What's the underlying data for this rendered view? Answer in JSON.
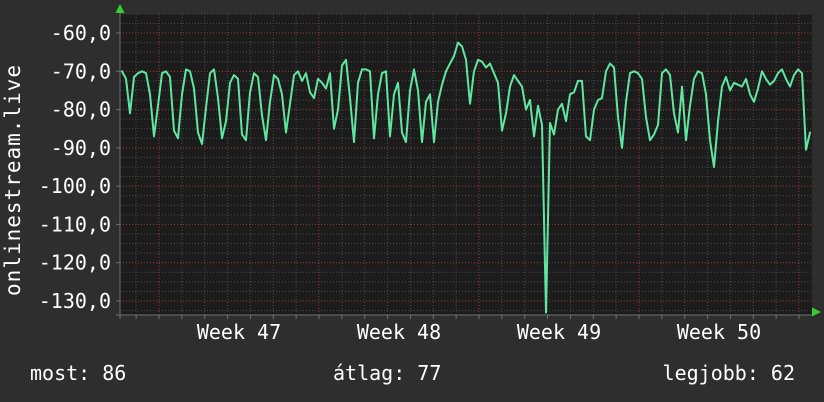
{
  "watermark": {
    "text": "onlinestream.live"
  },
  "footer": {
    "items": [
      {
        "label": "most",
        "value": "86",
        "text": "most: 86"
      },
      {
        "label": "átlag",
        "value": "77",
        "text": "átlag: 77"
      },
      {
        "label": "legjobb",
        "value": "62",
        "text": "legjobb: 62"
      }
    ]
  },
  "chart_data": {
    "type": "line",
    "title": "",
    "xlabel": "",
    "ylabel": "",
    "grid": true,
    "legend_position": "none",
    "colors": {
      "background": "#2e2e2e",
      "plot_background": "#1c1c1c",
      "line": "#5fe6a0",
      "grid_minor": "#4c4c4c",
      "grid_major": "#a03c32",
      "axis": "#707070",
      "arrow": "#2fd22f",
      "text": "#ffffff"
    },
    "y_axis": {
      "tick_labels": [
        "-60,0",
        "-70,0",
        "-80,0",
        "-90,0",
        "-100,0",
        "-110,0",
        "-120,0",
        "-130,0"
      ],
      "tick_values": [
        -60,
        -70,
        -80,
        -90,
        -100,
        -110,
        -120,
        -130
      ],
      "range": [
        -133.5,
        -58
      ],
      "minor_divisions_per_major": 4
    },
    "x_axis": {
      "labels": [
        "Week 47",
        "Week 48",
        "Week 49",
        "Week 50"
      ],
      "days_per_week": 7
    },
    "series": [
      {
        "name": "value",
        "points": [
          [
            122,
            -70
          ],
          [
            126,
            -72
          ],
          [
            130,
            -81
          ],
          [
            134,
            -71.5
          ],
          [
            138,
            -70.5
          ],
          [
            142,
            -70
          ],
          [
            146,
            -70.5
          ],
          [
            150,
            -76
          ],
          [
            154,
            -87
          ],
          [
            158,
            -79
          ],
          [
            162,
            -70.5
          ],
          [
            166,
            -70
          ],
          [
            170,
            -71.5
          ],
          [
            174,
            -85.5
          ],
          [
            178,
            -87.5
          ],
          [
            182,
            -76
          ],
          [
            186,
            -69.5
          ],
          [
            190,
            -70
          ],
          [
            194,
            -74.5
          ],
          [
            198,
            -86
          ],
          [
            202,
            -89
          ],
          [
            206,
            -79.5
          ],
          [
            210,
            -70.5
          ],
          [
            214,
            -69.5
          ],
          [
            218,
            -77
          ],
          [
            222,
            -87.5
          ],
          [
            226,
            -83
          ],
          [
            230,
            -73
          ],
          [
            234,
            -71
          ],
          [
            238,
            -72
          ],
          [
            242,
            -86.5
          ],
          [
            246,
            -88
          ],
          [
            250,
            -75.5
          ],
          [
            254,
            -70.5
          ],
          [
            258,
            -71.5
          ],
          [
            262,
            -81.5
          ],
          [
            266,
            -88
          ],
          [
            270,
            -78
          ],
          [
            274,
            -71
          ],
          [
            278,
            -72
          ],
          [
            282,
            -76
          ],
          [
            286,
            -86
          ],
          [
            290,
            -78.5
          ],
          [
            294,
            -71
          ],
          [
            298,
            -70
          ],
          [
            302,
            -72.5
          ],
          [
            306,
            -70.5
          ],
          [
            310,
            -75.5
          ],
          [
            314,
            -77
          ],
          [
            318,
            -72
          ],
          [
            322,
            -73
          ],
          [
            326,
            -74.5
          ],
          [
            330,
            -70.5
          ],
          [
            334,
            -85
          ],
          [
            338,
            -80
          ],
          [
            342,
            -68.5
          ],
          [
            346,
            -67
          ],
          [
            350,
            -77
          ],
          [
            354,
            -88.5
          ],
          [
            358,
            -73
          ],
          [
            362,
            -69.5
          ],
          [
            366,
            -69.5
          ],
          [
            370,
            -70
          ],
          [
            374,
            -87.5
          ],
          [
            378,
            -76
          ],
          [
            382,
            -70.5
          ],
          [
            386,
            -70
          ],
          [
            390,
            -87
          ],
          [
            394,
            -76
          ],
          [
            398,
            -73
          ],
          [
            402,
            -86
          ],
          [
            406,
            -88.5
          ],
          [
            410,
            -75
          ],
          [
            414,
            -69.5
          ],
          [
            418,
            -75
          ],
          [
            422,
            -88.5
          ],
          [
            426,
            -78
          ],
          [
            430,
            -76
          ],
          [
            434,
            -88.5
          ],
          [
            438,
            -78
          ],
          [
            442,
            -73.5
          ],
          [
            446,
            -70
          ],
          [
            450,
            -68
          ],
          [
            454,
            -66
          ],
          [
            458,
            -62.5
          ],
          [
            462,
            -63.5
          ],
          [
            466,
            -67
          ],
          [
            470,
            -78.5
          ],
          [
            474,
            -70
          ],
          [
            478,
            -67
          ],
          [
            482,
            -67.5
          ],
          [
            486,
            -69
          ],
          [
            490,
            -68
          ],
          [
            494,
            -70.5
          ],
          [
            498,
            -73
          ],
          [
            502,
            -85.5
          ],
          [
            506,
            -81
          ],
          [
            510,
            -74
          ],
          [
            514,
            -71
          ],
          [
            518,
            -72.5
          ],
          [
            522,
            -74
          ],
          [
            526,
            -80
          ],
          [
            530,
            -77.5
          ],
          [
            534,
            -87
          ],
          [
            538,
            -79
          ],
          [
            542,
            -84
          ],
          [
            546,
            -133
          ],
          [
            550,
            -83.5
          ],
          [
            554,
            -86.5
          ],
          [
            558,
            -80
          ],
          [
            562,
            -78.5
          ],
          [
            566,
            -83
          ],
          [
            570,
            -76
          ],
          [
            574,
            -75.5
          ],
          [
            578,
            -72.5
          ],
          [
            582,
            -72.5
          ],
          [
            586,
            -87
          ],
          [
            590,
            -88
          ],
          [
            594,
            -80
          ],
          [
            598,
            -77.5
          ],
          [
            602,
            -77
          ],
          [
            606,
            -70
          ],
          [
            610,
            -68
          ],
          [
            614,
            -69
          ],
          [
            618,
            -82
          ],
          [
            622,
            -90
          ],
          [
            626,
            -78
          ],
          [
            630,
            -70.5
          ],
          [
            634,
            -70
          ],
          [
            638,
            -70.5
          ],
          [
            642,
            -72
          ],
          [
            646,
            -82
          ],
          [
            650,
            -88
          ],
          [
            654,
            -86.5
          ],
          [
            658,
            -84
          ],
          [
            662,
            -70.5
          ],
          [
            666,
            -69.5
          ],
          [
            670,
            -71
          ],
          [
            674,
            -81
          ],
          [
            678,
            -86
          ],
          [
            682,
            -74
          ],
          [
            686,
            -88
          ],
          [
            690,
            -79
          ],
          [
            694,
            -72
          ],
          [
            698,
            -70
          ],
          [
            702,
            -70.5
          ],
          [
            706,
            -76
          ],
          [
            710,
            -88
          ],
          [
            714,
            -95
          ],
          [
            718,
            -83
          ],
          [
            722,
            -74
          ],
          [
            726,
            -71.5
          ],
          [
            730,
            -75
          ],
          [
            734,
            -73
          ],
          [
            738,
            -73.5
          ],
          [
            742,
            -74
          ],
          [
            746,
            -72
          ],
          [
            750,
            -76
          ],
          [
            754,
            -78
          ],
          [
            758,
            -74.5
          ],
          [
            762,
            -70
          ],
          [
            766,
            -72
          ],
          [
            770,
            -73.5
          ],
          [
            774,
            -72.5
          ],
          [
            778,
            -70.5
          ],
          [
            782,
            -69.5
          ],
          [
            786,
            -72
          ],
          [
            790,
            -74
          ],
          [
            794,
            -71
          ],
          [
            798,
            -69.5
          ],
          [
            802,
            -70.5
          ],
          [
            806,
            -90.5
          ],
          [
            810,
            -86
          ]
        ]
      }
    ]
  }
}
